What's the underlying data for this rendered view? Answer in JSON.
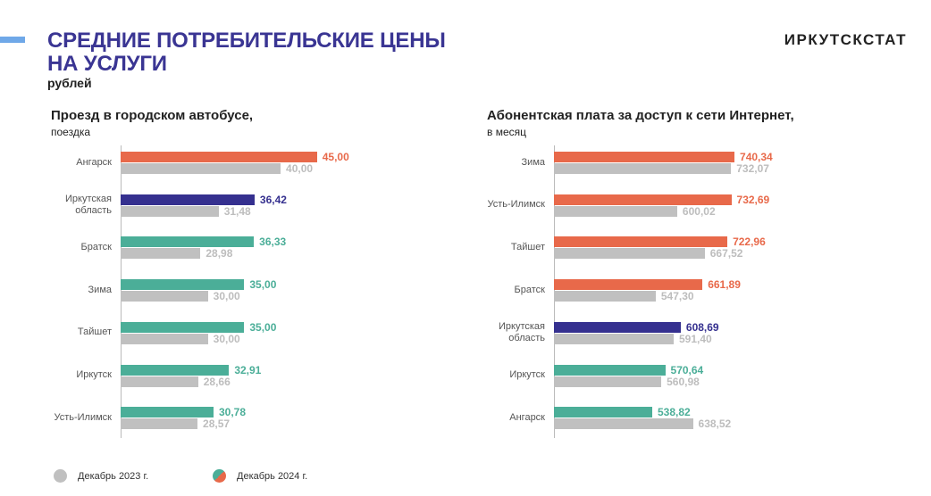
{
  "header": {
    "title_line1": "СРЕДНИЕ ПОТРЕБИТЕЛЬСКИЕ ЦЕНЫ",
    "title_line2": "НА УСЛУГИ",
    "unit": "рублей",
    "brand": "ИРКУТСКСТАТ"
  },
  "colors": {
    "highlight": "#E8694A",
    "region": "#35308F",
    "other": "#4BAE98",
    "prev": "#C0C0C0"
  },
  "legend": {
    "prev": "Декабрь 2023 г.",
    "curr": "Декабрь 2024 г."
  },
  "chart_data": [
    {
      "type": "bar",
      "orientation": "horizontal",
      "title": "Проезд в городском автобусе,",
      "subtitle": "поездка",
      "xlim": [
        18,
        47
      ],
      "categories": [
        "Ангарск",
        "Иркутская область",
        "Братск",
        "Зима",
        "Тайшет",
        "Иркутск",
        "Усть-Илимск"
      ],
      "category_lines": [
        [
          "Ангарск"
        ],
        [
          "Иркутская",
          "область"
        ],
        [
          "Братск"
        ],
        [
          "Зима"
        ],
        [
          "Тайшет"
        ],
        [
          "Иркутск"
        ],
        [
          "Усть-Илимск"
        ]
      ],
      "colors": [
        "highlight",
        "region",
        "other",
        "other",
        "other",
        "other",
        "other"
      ],
      "series": [
        {
          "name": "Декабрь 2024 г.",
          "values": [
            45.0,
            36.42,
            36.33,
            35.0,
            35.0,
            32.91,
            30.78
          ],
          "labels": [
            "45,00",
            "36,42",
            "36,33",
            "35,00",
            "35,00",
            "32,91",
            "30,78"
          ]
        },
        {
          "name": "Декабрь 2023 г.",
          "values": [
            40.0,
            31.48,
            28.98,
            30.0,
            30.0,
            28.66,
            28.57
          ],
          "labels": [
            "40,00",
            "31,48",
            "28,98",
            "30,00",
            "30,00",
            "28,66",
            "28,57"
          ]
        }
      ]
    },
    {
      "type": "bar",
      "orientation": "horizontal",
      "title": "Абонентская  плата за доступ к сети Интернет,",
      "subtitle": "в месяц",
      "xlim": [
        298,
        760
      ],
      "categories": [
        "Зима",
        "Усть-Илимск",
        "Тайшет",
        "Братск",
        "Иркутская область",
        "Иркутск",
        "Ангарск"
      ],
      "category_lines": [
        [
          "Зима"
        ],
        [
          "Усть-Илимск"
        ],
        [
          "Тайшет"
        ],
        [
          "Братск"
        ],
        [
          "Иркутская",
          "область"
        ],
        [
          "Иркутск"
        ],
        [
          "Ангарск"
        ]
      ],
      "colors": [
        "highlight",
        "highlight",
        "highlight",
        "highlight",
        "region",
        "other",
        "other"
      ],
      "series": [
        {
          "name": "Декабрь 2024 г.",
          "values": [
            740.34,
            732.69,
            722.96,
            661.89,
            608.69,
            570.64,
            538.82
          ],
          "labels": [
            "740,34",
            "732,69",
            "722,96",
            "661,89",
            "608,69",
            "570,64",
            "538,82"
          ]
        },
        {
          "name": "Декабрь 2023 г.",
          "values": [
            732.07,
            600.02,
            667.52,
            547.3,
            591.4,
            560.98,
            638.52
          ],
          "labels": [
            "732,07",
            "600,02",
            "667,52",
            "547,30",
            "591,40",
            "560,98",
            "638,52"
          ]
        }
      ]
    }
  ]
}
